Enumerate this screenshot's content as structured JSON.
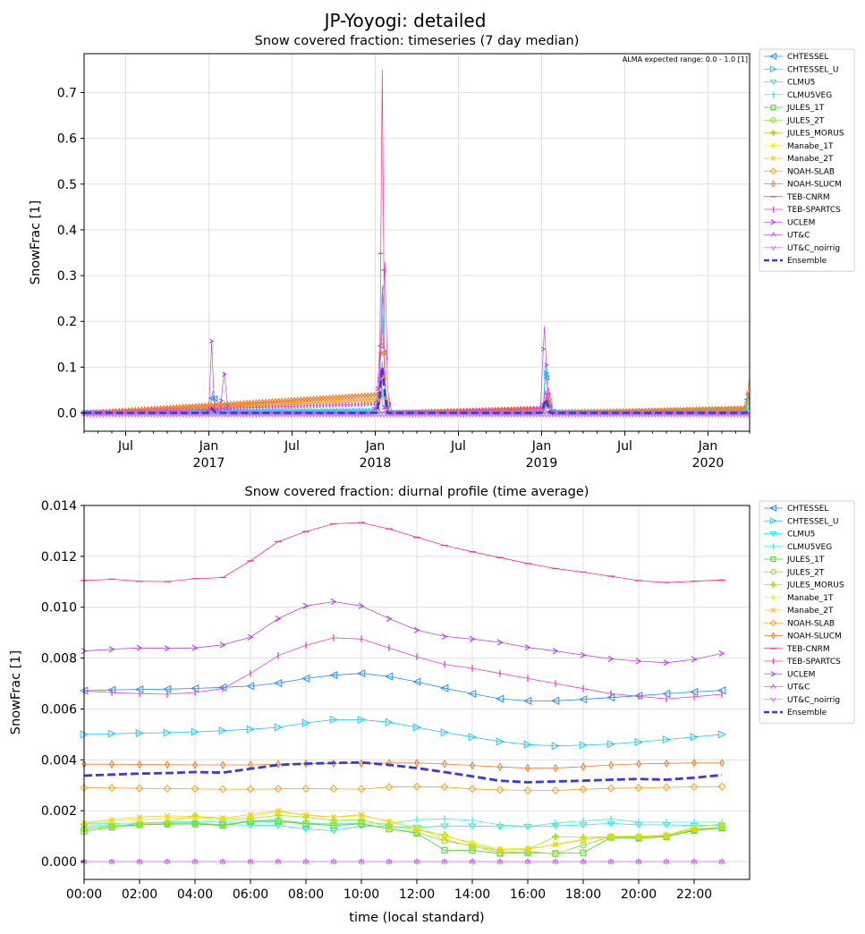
{
  "figure": {
    "suptitle": "JP-Yoyogi: detailed"
  },
  "top": {
    "title": "Snow covered fraction: timeseries (7 day median)",
    "ylabel": "SnowFrac [1]",
    "note": "ALMA expected range: 0.0 - 1.0 [1]",
    "y_ticks": [
      "0.0",
      "0.1",
      "0.2",
      "0.3",
      "0.4",
      "0.5",
      "0.6",
      "0.7"
    ],
    "x_ticks": [
      {
        "m": 3,
        "l1": "Jul",
        "l2": ""
      },
      {
        "m": 9,
        "l1": "Jan",
        "l2": "2017"
      },
      {
        "m": 15,
        "l1": "Jul",
        "l2": ""
      },
      {
        "m": 21,
        "l1": "Jan",
        "l2": "2018"
      },
      {
        "m": 27,
        "l1": "Jul",
        "l2": ""
      },
      {
        "m": 33,
        "l1": "Jan",
        "l2": "2019"
      },
      {
        "m": 39,
        "l1": "Jul",
        "l2": ""
      },
      {
        "m": 45,
        "l1": "Jan",
        "l2": "2020"
      }
    ]
  },
  "bottom": {
    "title": "Snow covered fraction: diurnal profile (time average)",
    "ylabel": "SnowFrac [1]",
    "xlabel": "time (local standard)",
    "y_ticks": [
      "0.000",
      "0.002",
      "0.004",
      "0.006",
      "0.008",
      "0.010",
      "0.012",
      "0.014"
    ],
    "x_ticks": [
      "00:00",
      "02:00",
      "04:00",
      "06:00",
      "08:00",
      "10:00",
      "12:00",
      "14:00",
      "16:00",
      "18:00",
      "20:00",
      "22:00"
    ]
  },
  "legend": [
    {
      "name": "CHTESSEL",
      "color": "#1f8fff",
      "marker": "tri-left"
    },
    {
      "name": "CHTESSEL_U",
      "color": "#22c7ff",
      "marker": "tri-right"
    },
    {
      "name": "CLMU5",
      "color": "#1ee8e8",
      "marker": "tri-down"
    },
    {
      "name": "CLMU5VEG",
      "color": "#3ff0d0",
      "marker": "vline"
    },
    {
      "name": "JULES_1T",
      "color": "#3fd81f",
      "marker": "square"
    },
    {
      "name": "JULES_2T",
      "color": "#7fe01f",
      "marker": "circle"
    },
    {
      "name": "JULES_MORUS",
      "color": "#9fe81f",
      "marker": "plus-filled"
    },
    {
      "name": "Manabe_1T",
      "color": "#e8ee1f",
      "marker": "star"
    },
    {
      "name": "Manabe_2T",
      "color": "#f7c81f",
      "marker": "x"
    },
    {
      "name": "NOAH-SLAB",
      "color": "#f5a623",
      "marker": "diamond"
    },
    {
      "name": "NOAH-SLUCM",
      "color": "#f07a28",
      "marker": "thin-diamond"
    },
    {
      "name": "TEB-CNRM",
      "color": "#ff2e96",
      "marker": "hline"
    },
    {
      "name": "TEB-SPARTCS",
      "color": "#e640c8",
      "marker": "vline"
    },
    {
      "name": "UCLEM",
      "color": "#b84be6",
      "marker": "caret-right"
    },
    {
      "name": "UT&C",
      "color": "#c064f0",
      "marker": "caret-up"
    },
    {
      "name": "UT&C_noirrig",
      "color": "#dd7cf5",
      "marker": "caret-down"
    },
    {
      "name": "Ensemble",
      "color": "#3b38e0",
      "marker": "dash"
    }
  ],
  "chart_data": [
    {
      "type": "line",
      "title": "Snow covered fraction: timeseries (7 day median)",
      "ylabel": "SnowFrac [1]",
      "x_unit": "months since 2016-04-01",
      "xlim": [
        0,
        48
      ],
      "ylim": [
        -0.04,
        0.785
      ],
      "series": [
        {
          "name": "CHTESSEL",
          "x": [
            0,
            8.1,
            8.4,
            9.0,
            9.3,
            9.6,
            9.9,
            10.2,
            10.5,
            20.5,
            21.0,
            21.3,
            21.5,
            21.7,
            22.0,
            32.5,
            33.1,
            33.3,
            33.6,
            33.9,
            47.6,
            48
          ],
          "y": [
            0,
            0,
            0.003,
            0,
            0.048,
            0.01,
            0,
            0.015,
            0,
            0,
            0.007,
            0.04,
            0.277,
            0.035,
            0,
            0,
            0.005,
            0.09,
            0.01,
            0,
            0.005,
            0.046
          ]
        },
        {
          "name": "CHTESSEL_U",
          "x": [
            0,
            21.2,
            21.5,
            21.8,
            22.0,
            33.1,
            33.3,
            33.5,
            33.8,
            47.7,
            48
          ],
          "y": [
            0,
            0.005,
            0.112,
            0.02,
            0,
            0.005,
            0.11,
            0.02,
            0,
            0.005,
            0.035
          ]
        },
        {
          "name": "CLMU5",
          "x": [
            0,
            21.2,
            21.5,
            21.8,
            22.0,
            33.2,
            33.4,
            33.7,
            48
          ],
          "y": [
            0,
            0.005,
            0.055,
            0.01,
            0,
            0.005,
            0.04,
            0,
            0.01
          ]
        },
        {
          "name": "CLMU5VEG",
          "x": [
            0,
            21.2,
            21.5,
            21.8,
            22.0,
            48
          ],
          "y": [
            0,
            0.004,
            0.05,
            0.008,
            0,
            0.008
          ]
        },
        {
          "name": "NOAH-SLAB",
          "x": [
            0,
            21.2,
            21.5,
            21.8,
            22.0,
            33.2,
            33.5,
            33.8,
            47.7,
            48
          ],
          "y": [
            0,
            0.03,
            0.19,
            0.04,
            0,
            0.01,
            0.04,
            0,
            0.01,
            0.04
          ]
        },
        {
          "name": "NOAH-SLUCM",
          "x": [
            0,
            21.2,
            21.5,
            21.8,
            22.0,
            33.2,
            33.5,
            33.8,
            47.7,
            48
          ],
          "y": [
            0,
            0.04,
            0.1,
            0.03,
            0,
            0.01,
            0.03,
            0,
            0.01,
            0.078
          ]
        },
        {
          "name": "TEB-CNRM",
          "x": [
            0,
            8.8,
            9.1,
            9.4,
            21.0,
            21.3,
            21.5,
            21.7,
            22.0,
            33.0,
            33.3,
            33.6,
            48
          ],
          "y": [
            0,
            0,
            0.01,
            0,
            0,
            0.02,
            0.75,
            0.02,
            0,
            0,
            0.05,
            0,
            0
          ]
        },
        {
          "name": "TEB-SPARTCS",
          "x": [
            0,
            21.2,
            21.5,
            21.7,
            21.9,
            22.2,
            33.2,
            33.5,
            33.8,
            48
          ],
          "y": [
            0,
            0.02,
            0.19,
            0.33,
            0.05,
            0,
            0.01,
            0.055,
            0,
            0
          ]
        },
        {
          "name": "UCLEM",
          "x": [
            0,
            9.0,
            9.2,
            9.4,
            9.8,
            10.1,
            10.4,
            20.8,
            21.1,
            21.3,
            21.5,
            21.8,
            32.9,
            33.2,
            33.5,
            33.8,
            48
          ],
          "y": [
            0,
            0,
            0.157,
            0.01,
            0,
            0.09,
            0,
            0,
            0.02,
            0.13,
            0.02,
            0,
            0,
            0.19,
            0.02,
            0,
            0
          ]
        },
        {
          "name": "UT&C",
          "x": [
            0,
            48
          ],
          "y": [
            0,
            0
          ]
        },
        {
          "name": "UT&C_noirrig",
          "x": [
            0,
            48
          ],
          "y": [
            -0.005,
            -0.005
          ]
        },
        {
          "name": "Ensemble",
          "x": [
            0,
            8.9,
            9.2,
            9.5,
            21.1,
            21.3,
            21.5,
            21.7,
            21.9,
            33.0,
            33.3,
            33.6,
            47.7,
            48
          ],
          "y": [
            0,
            0,
            0.01,
            0,
            0,
            0.03,
            0.1,
            0.04,
            0,
            0,
            0.03,
            0,
            0,
            0.005
          ]
        }
      ]
    },
    {
      "type": "line",
      "title": "Snow covered fraction: diurnal profile (time average)",
      "xlabel": "time (local standard)",
      "ylabel": "SnowFrac [1]",
      "x": [
        0,
        1,
        2,
        3,
        4,
        5,
        6,
        7,
        8,
        9,
        10,
        11,
        12,
        13,
        14,
        15,
        16,
        17,
        18,
        19,
        20,
        21,
        22,
        23
      ],
      "xlim": [
        0,
        24
      ],
      "ylim": [
        -0.0007,
        0.014
      ],
      "series": [
        {
          "name": "CHTESSEL",
          "values": [
            0.00672,
            0.00675,
            0.00677,
            0.00678,
            0.00681,
            0.00685,
            0.0069,
            0.00702,
            0.0072,
            0.00733,
            0.0074,
            0.00728,
            0.00707,
            0.00682,
            0.0066,
            0.0064,
            0.00632,
            0.00632,
            0.00638,
            0.00645,
            0.00652,
            0.0066,
            0.00667,
            0.00673
          ]
        },
        {
          "name": "CHTESSEL_U",
          "values": [
            0.005,
            0.00503,
            0.00505,
            0.00507,
            0.0051,
            0.00515,
            0.0052,
            0.00528,
            0.00545,
            0.00558,
            0.00558,
            0.00548,
            0.00528,
            0.00508,
            0.0049,
            0.00472,
            0.0046,
            0.00455,
            0.00458,
            0.00462,
            0.0047,
            0.0048,
            0.0049,
            0.005
          ]
        },
        {
          "name": "CLMU5",
          "values": [
            0.0014,
            0.00142,
            0.00145,
            0.00147,
            0.00148,
            0.00146,
            0.00143,
            0.00142,
            0.00128,
            0.00122,
            0.0014,
            0.00138,
            0.00135,
            0.0014,
            0.0014,
            0.00138,
            0.00138,
            0.0014,
            0.00145,
            0.0015,
            0.00145,
            0.00145,
            0.00142,
            0.00142
          ]
        },
        {
          "name": "CLMU5VEG",
          "values": [
            0.00148,
            0.0015,
            0.00152,
            0.00155,
            0.00158,
            0.00158,
            0.0016,
            0.00165,
            0.00152,
            0.00148,
            0.00152,
            0.0015,
            0.00165,
            0.00168,
            0.00162,
            0.00145,
            0.00138,
            0.00152,
            0.0016,
            0.00168,
            0.00155,
            0.00155,
            0.00155,
            0.00155
          ]
        },
        {
          "name": "JULES_1T",
          "values": [
            0.0012,
            0.00135,
            0.00145,
            0.00148,
            0.00148,
            0.00142,
            0.00158,
            0.00158,
            0.00148,
            0.00142,
            0.00148,
            0.00128,
            0.00112,
            0.00045,
            0.00045,
            0.00032,
            0.00035,
            0.00032,
            0.00035,
            0.00095,
            0.00092,
            0.00098,
            0.00122,
            0.00132
          ]
        },
        {
          "name": "JULES_2T",
          "values": [
            0.0013,
            0.0014,
            0.0015,
            0.00152,
            0.00152,
            0.00145,
            0.0016,
            0.0016,
            0.0015,
            0.00143,
            0.0015,
            0.00128,
            0.00115,
            0.00082,
            0.00062,
            0.00035,
            0.0004,
            0.0003,
            0.00065,
            0.00098,
            0.00095,
            0.001,
            0.00125,
            0.00135
          ]
        },
        {
          "name": "JULES_MORUS",
          "values": [
            0.00128,
            0.0014,
            0.0015,
            0.00155,
            0.0018,
            0.00165,
            0.0017,
            0.00182,
            0.00175,
            0.00162,
            0.00165,
            0.00138,
            0.00125,
            0.00105,
            0.00068,
            0.00045,
            0.00048,
            0.00098,
            0.00095,
            0.00098,
            0.00098,
            0.00105,
            0.00128,
            0.00135
          ]
        },
        {
          "name": "Manabe_1T",
          "values": [
            0.0015,
            0.00158,
            0.00165,
            0.0017,
            0.00172,
            0.00168,
            0.00178,
            0.00195,
            0.00185,
            0.00175,
            0.0018,
            0.0016,
            0.00135,
            0.001,
            0.00075,
            0.0005,
            0.00052,
            0.00065,
            0.00085,
            0.001,
            0.001,
            0.00105,
            0.00135,
            0.00148
          ]
        },
        {
          "name": "Manabe_2T",
          "values": [
            0.00152,
            0.00165,
            0.00175,
            0.0018,
            0.00178,
            0.00172,
            0.00185,
            0.002,
            0.00182,
            0.00175,
            0.00185,
            0.00155,
            0.0013,
            0.0009,
            0.00058,
            0.00045,
            0.00048,
            0.00068,
            0.00088,
            0.00098,
            0.00098,
            0.00102,
            0.00135,
            0.00148
          ]
        },
        {
          "name": "NOAH-SLAB",
          "values": [
            0.0029,
            0.0029,
            0.00288,
            0.00287,
            0.00286,
            0.00285,
            0.00285,
            0.00286,
            0.00287,
            0.00286,
            0.00285,
            0.00293,
            0.00295,
            0.00293,
            0.00286,
            0.00282,
            0.0028,
            0.0028,
            0.00284,
            0.00288,
            0.0029,
            0.00292,
            0.00294,
            0.00295
          ]
        },
        {
          "name": "NOAH-SLUCM",
          "values": [
            0.00383,
            0.00383,
            0.00382,
            0.00381,
            0.0038,
            0.0038,
            0.0038,
            0.00383,
            0.00385,
            0.00386,
            0.00386,
            0.00388,
            0.00388,
            0.00384,
            0.00378,
            0.00372,
            0.00368,
            0.00368,
            0.00373,
            0.0038,
            0.00384,
            0.00386,
            0.00388,
            0.00388
          ]
        },
        {
          "name": "TEB-CNRM",
          "values": [
            0.01105,
            0.0111,
            0.01102,
            0.01101,
            0.01112,
            0.01117,
            0.01182,
            0.01258,
            0.01298,
            0.01328,
            0.01333,
            0.01308,
            0.01275,
            0.01243,
            0.01218,
            0.01195,
            0.01172,
            0.01152,
            0.01138,
            0.01122,
            0.01105,
            0.01097,
            0.01102,
            0.01107
          ]
        },
        {
          "name": "TEB-SPARTCS",
          "values": [
            0.0067,
            0.00665,
            0.0066,
            0.00658,
            0.00665,
            0.0068,
            0.0074,
            0.0081,
            0.0085,
            0.0088,
            0.00875,
            0.0084,
            0.00805,
            0.00775,
            0.0076,
            0.0074,
            0.0072,
            0.007,
            0.0068,
            0.0066,
            0.0065,
            0.0064,
            0.00648,
            0.00658
          ]
        },
        {
          "name": "UCLEM",
          "values": [
            0.00828,
            0.00835,
            0.0084,
            0.00838,
            0.0084,
            0.00852,
            0.00882,
            0.00955,
            0.01005,
            0.01022,
            0.01005,
            0.00955,
            0.0091,
            0.00885,
            0.00875,
            0.00862,
            0.00842,
            0.00828,
            0.00812,
            0.00797,
            0.00788,
            0.00782,
            0.00795,
            0.00818
          ]
        },
        {
          "name": "UT&C",
          "values": [
            0,
            0,
            0,
            0,
            0,
            0,
            0,
            0,
            0,
            0,
            0,
            0,
            0,
            0,
            0,
            0,
            0,
            0,
            0,
            0,
            0,
            0,
            0,
            0
          ]
        },
        {
          "name": "UT&C_noirrig",
          "values": [
            0,
            0,
            0,
            0,
            0,
            0,
            0,
            0,
            0,
            0,
            0,
            0,
            0,
            0,
            0,
            0,
            0,
            0,
            0,
            0,
            0,
            0,
            0,
            0
          ]
        },
        {
          "name": "Ensemble",
          "values": [
            0.00338,
            0.00342,
            0.00346,
            0.00348,
            0.00352,
            0.0035,
            0.00365,
            0.0038,
            0.00385,
            0.00388,
            0.0039,
            0.0038,
            0.00368,
            0.00352,
            0.00335,
            0.00318,
            0.00312,
            0.00315,
            0.00318,
            0.00322,
            0.00325,
            0.00322,
            0.0033,
            0.0034
          ]
        }
      ]
    }
  ]
}
